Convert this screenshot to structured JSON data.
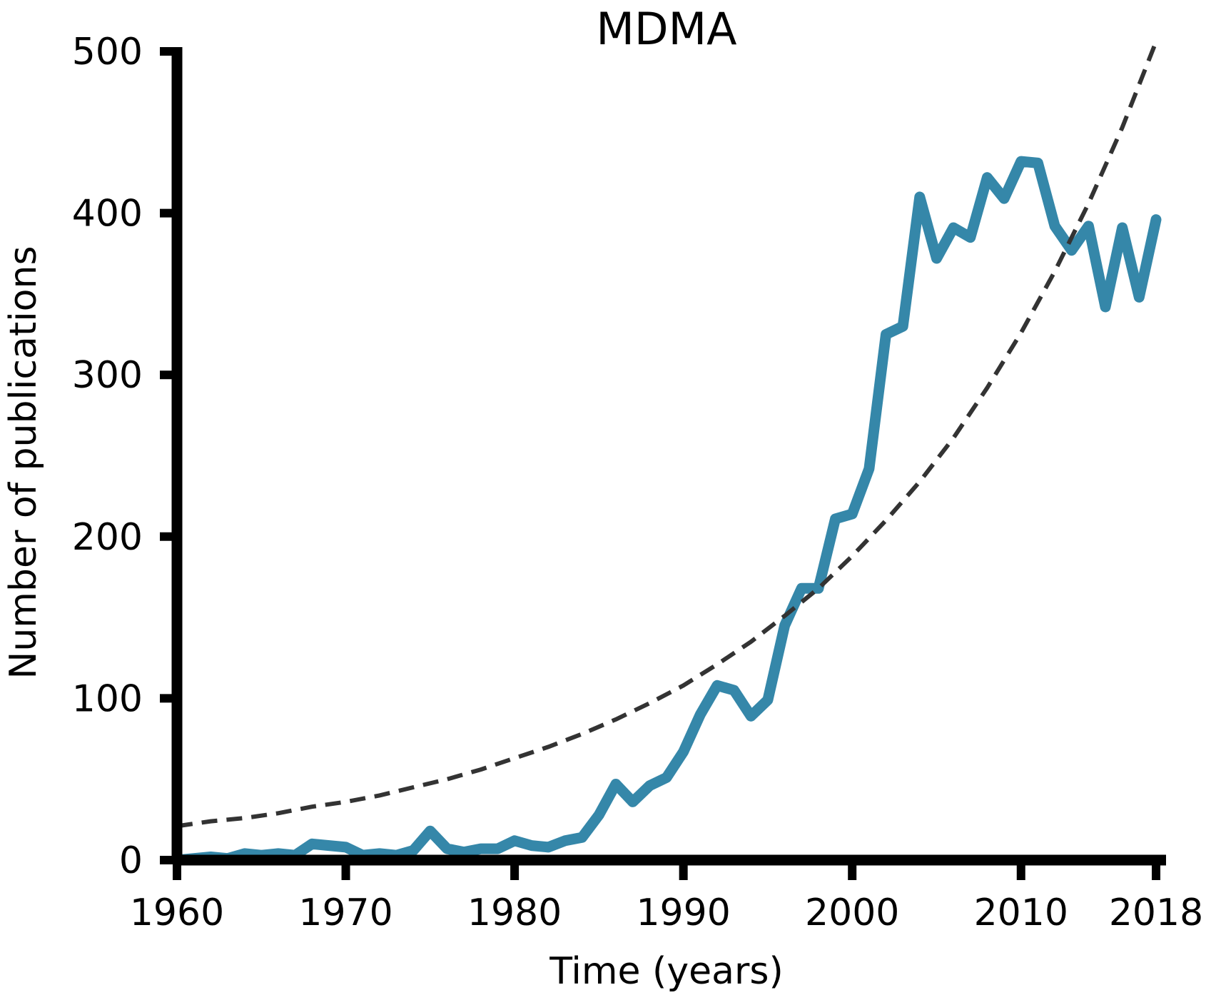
{
  "chart_data": {
    "type": "line",
    "title": "MDMA",
    "xlabel": "Time (years)",
    "ylabel": "Number of publications",
    "xlim": [
      1960,
      2018
    ],
    "ylim": [
      0,
      500
    ],
    "xticks": [
      1960,
      1970,
      1980,
      1990,
      2000,
      2010,
      2018
    ],
    "yticks": [
      0,
      100,
      200,
      300,
      400,
      500
    ],
    "grid": false,
    "legend": "none",
    "series": [
      {
        "style": "solid",
        "color": "#3587a9",
        "x": [
          1960,
          1961,
          1962,
          1963,
          1964,
          1965,
          1966,
          1967,
          1968,
          1969,
          1970,
          1971,
          1972,
          1973,
          1974,
          1975,
          1976,
          1977,
          1978,
          1979,
          1980,
          1981,
          1982,
          1983,
          1984,
          1985,
          1986,
          1987,
          1988,
          1989,
          1990,
          1991,
          1992,
          1993,
          1994,
          1995,
          1996,
          1997,
          1998,
          1999,
          2000,
          2001,
          2002,
          2003,
          2004,
          2005,
          2006,
          2007,
          2008,
          2009,
          2010,
          2011,
          2012,
          2013,
          2014,
          2015,
          2016,
          2017,
          2018
        ],
        "values": [
          0,
          1,
          2,
          1,
          4,
          3,
          4,
          3,
          10,
          9,
          8,
          3,
          4,
          3,
          6,
          18,
          7,
          5,
          7,
          7,
          12,
          9,
          8,
          12,
          14,
          28,
          47,
          36,
          46,
          51,
          67,
          90,
          108,
          105,
          89,
          99,
          145,
          168,
          168,
          211,
          214,
          242,
          325,
          330,
          410,
          372,
          391,
          385,
          422,
          409,
          432,
          431,
          392,
          377,
          392,
          342,
          391,
          348,
          396
        ]
      },
      {
        "style": "dashed",
        "color": "#333333",
        "x": [
          1960,
          1962,
          1964,
          1966,
          1968,
          1970,
          1972,
          1974,
          1976,
          1978,
          1980,
          1982,
          1984,
          1986,
          1988,
          1990,
          1992,
          1994,
          1996,
          1998,
          2000,
          2002,
          2004,
          2006,
          2008,
          2010,
          2012,
          2014,
          2016,
          2018
        ],
        "values": [
          21,
          24,
          26,
          29,
          33,
          36,
          40,
          45,
          50,
          56,
          63,
          70,
          78,
          87,
          97,
          108,
          121,
          135,
          151,
          168,
          188,
          210,
          234,
          261,
          292,
          326,
          364,
          406,
          453,
          506
        ]
      }
    ]
  }
}
